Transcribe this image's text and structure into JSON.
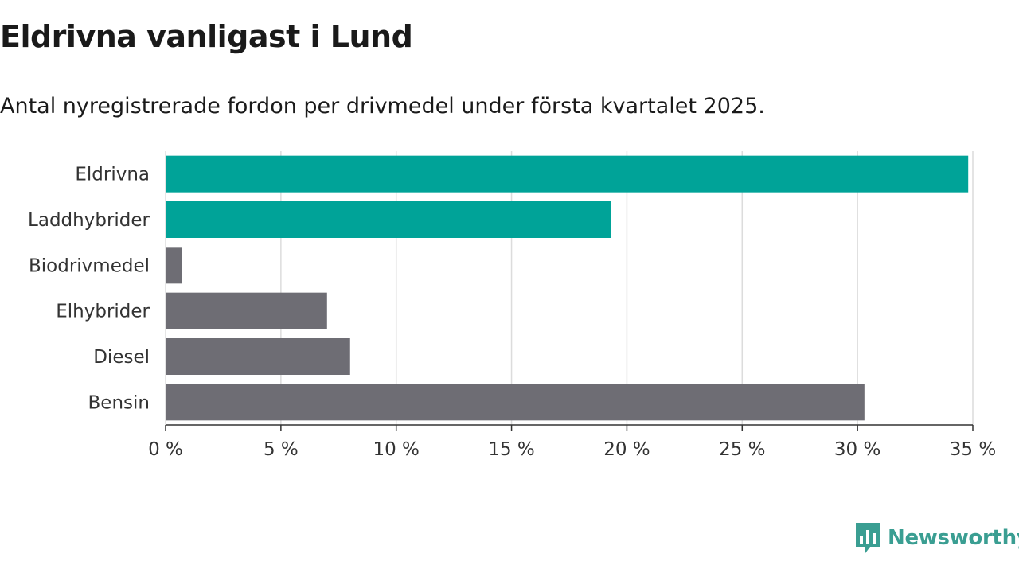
{
  "title": "Eldrivna vanligast i Lund",
  "subtitle": "Antal nyregistrerade fordon per drivmedel under första kvartalet 2025.",
  "brand": {
    "name": "Newsworthy",
    "icon": "newsworthy-chart-icon",
    "color": "#3a9e92"
  },
  "chart_data": {
    "type": "bar",
    "orientation": "horizontal",
    "categories": [
      "Eldrivna",
      "Laddhybrider",
      "Biodrivmedel",
      "Elhybrider",
      "Diesel",
      "Bensin"
    ],
    "values": [
      34.8,
      19.3,
      0.7,
      7.0,
      8.0,
      30.3
    ],
    "unit": "%",
    "xlim": [
      0,
      35
    ],
    "ticks": [
      0,
      5,
      10,
      15,
      20,
      25,
      30,
      35
    ],
    "tick_labels": [
      "0 %",
      "5 %",
      "10 %",
      "15 %",
      "20 %",
      "25 %",
      "30 %",
      "35 %"
    ],
    "colors": [
      "#00a398",
      "#00a398",
      "#6e6d74",
      "#6e6d74",
      "#6e6d74",
      "#6e6d74"
    ],
    "grid": true,
    "legend": "none"
  }
}
